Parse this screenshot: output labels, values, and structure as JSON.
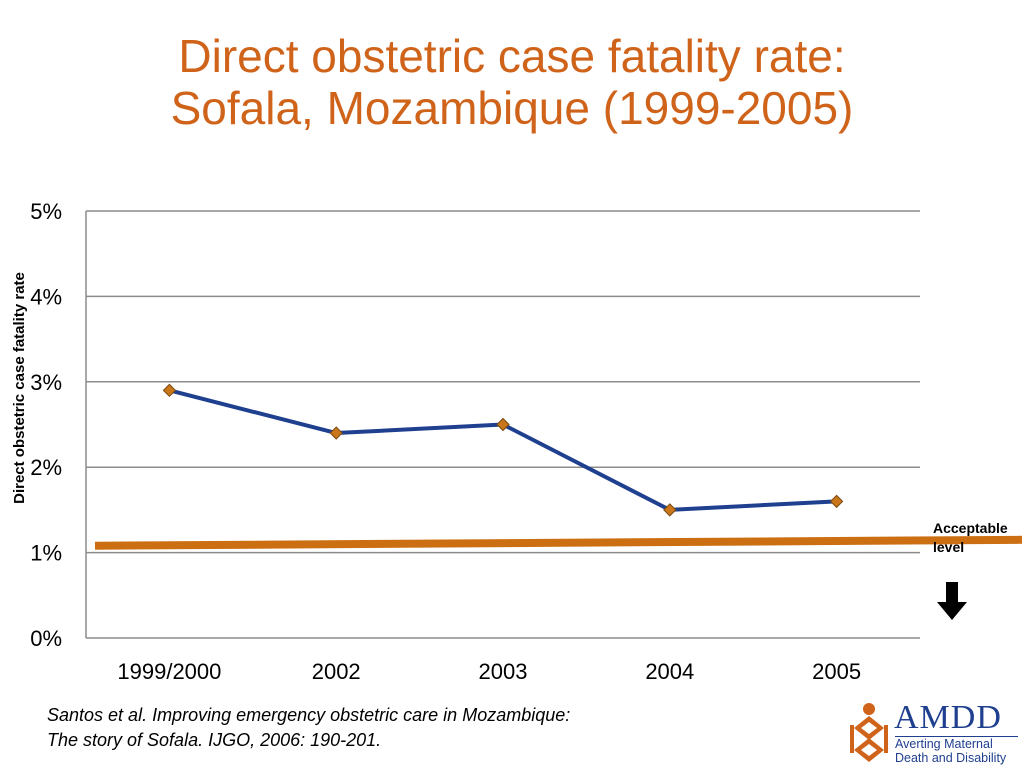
{
  "title_line1": "Direct obstetric case fatality rate:",
  "title_line2": "Sofala, Mozambique (1999-2005)",
  "chart_data": {
    "type": "line",
    "ylabel": "Direct obstetric case fatality rate",
    "xlabel": "",
    "categories": [
      "1999/2000",
      "2002",
      "2003",
      "2004",
      "2005"
    ],
    "series": [
      {
        "values": [
          2.9,
          2.4,
          2.5,
          1.5,
          1.6
        ],
        "color": "#1f3f8f",
        "marker_color": "#c9761a"
      }
    ],
    "ylim": [
      0,
      5
    ],
    "yticks": [
      0,
      1,
      2,
      3,
      4,
      5
    ],
    "ytick_labels": [
      "0%",
      "1%",
      "2%",
      "3%",
      "4%",
      "5%"
    ],
    "grid": true,
    "reference_line": {
      "label": "Acceptable level",
      "start_value": 1.08,
      "end_value": 1.15,
      "color": "#cc6f12"
    }
  },
  "annotation": {
    "line1": "Acceptable",
    "line2": "level",
    "arrow_icon": "down-arrow-icon"
  },
  "citation": {
    "line1": "Santos et al. Improving emergency obstetric care in Mozambique:",
    "line2": "The story of Sofala.  IJGO, 2006: 190-201."
  },
  "logo": {
    "abbr": "AMDD",
    "line1": "Averting Maternal",
    "line2": "Death and Disability",
    "color": "#1f3f8f",
    "icon_color": "#d0631a"
  }
}
